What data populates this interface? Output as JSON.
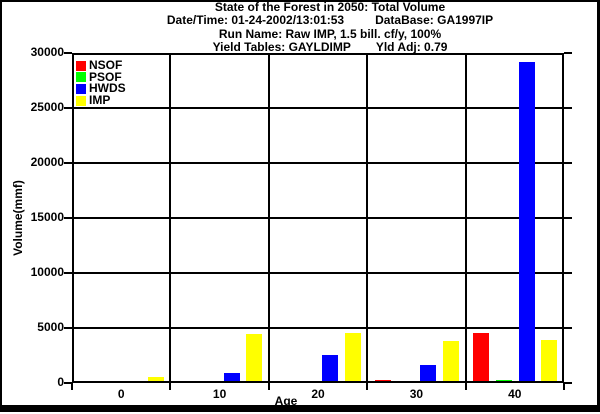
{
  "header": {
    "title": "State of the Forest in 2050: Total Volume",
    "datetime_label": "Date/Time: 01-24-2002/13:01:53",
    "database_label": "DataBase: GA1997IP",
    "run_name": "Run Name: Raw IMP, 1.5 bill. cf/y, 100%",
    "yield_tables_label": "Yield Tables: GAYLDIMP",
    "yield_adj_label": "Yld Adj: 0.79"
  },
  "chart_data": {
    "type": "bar",
    "title": "State of the Forest in 2050: Total Volume",
    "xlabel": "Age",
    "ylabel": "Volume(mmf)",
    "categories": [
      "0",
      "10",
      "20",
      "30",
      "40"
    ],
    "series": [
      {
        "name": "NSOF",
        "color": "#ff0000",
        "values": [
          0,
          0,
          0,
          100,
          4400
        ]
      },
      {
        "name": "PSOF",
        "color": "#00ff00",
        "values": [
          0,
          0,
          0,
          0,
          100
        ]
      },
      {
        "name": "HWDS",
        "color": "#0000ff",
        "values": [
          0,
          750,
          2400,
          1500,
          29000
        ]
      },
      {
        "name": "IMP",
        "color": "#ffff00",
        "values": [
          400,
          4300,
          4400,
          3650,
          3700
        ]
      }
    ],
    "ylim": [
      0,
      30000
    ],
    "yticks": [
      0,
      5000,
      10000,
      15000,
      20000,
      25000,
      30000
    ],
    "grid": true,
    "legend_position": "top-left"
  }
}
